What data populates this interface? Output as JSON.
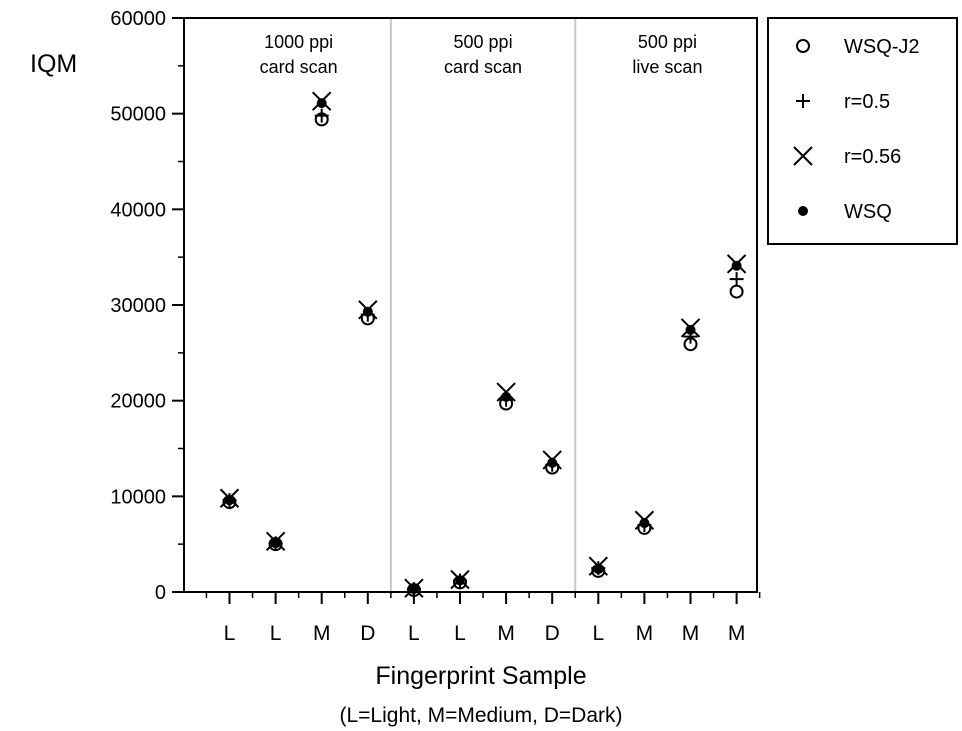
{
  "chart_data": {
    "type": "scatter",
    "ylabel": "IQM",
    "xlabel": "Fingerprint Sample",
    "xlabel_note": "(L=Light,  M=Medium,  D=Dark)",
    "ylim": [
      0,
      60000
    ],
    "y_ticks": [
      0,
      10000,
      20000,
      30000,
      40000,
      50000,
      60000
    ],
    "y_tick_labels": [
      "0",
      "10000",
      "20000",
      "30000",
      "40000",
      "50000",
      "60000"
    ],
    "categories": [
      "L",
      "L",
      "M",
      "D",
      "L",
      "L",
      "M",
      "D",
      "L",
      "M",
      "M",
      "M"
    ],
    "groups": [
      {
        "label_line1": "1000 ppi",
        "label_line2": "card scan",
        "start": 0,
        "end": 3
      },
      {
        "label_line1": "500 ppi",
        "label_line2": "card scan",
        "start": 4,
        "end": 7
      },
      {
        "label_line1": "500 ppi",
        "label_line2": "live scan",
        "start": 8,
        "end": 11
      }
    ],
    "legend_position": "top-right, outside plot",
    "grid": false,
    "series": [
      {
        "name": "WSQ-J2",
        "marker": "circle-open",
        "values": [
          9400,
          5000,
          49400,
          28600,
          200,
          1000,
          19700,
          13000,
          2200,
          6700,
          25900,
          31400
        ]
      },
      {
        "name": "r=0.5",
        "marker": "plus",
        "values": [
          9600,
          5100,
          49800,
          29000,
          300,
          1200,
          20100,
          13300,
          2500,
          7000,
          26700,
          32700
        ]
      },
      {
        "name": "r=0.56",
        "marker": "x",
        "values": [
          9800,
          5300,
          51300,
          29500,
          400,
          1300,
          20900,
          13800,
          2700,
          7500,
          27600,
          34300
        ]
      },
      {
        "name": "WSQ",
        "marker": "dot-filled",
        "values": [
          9600,
          5100,
          51100,
          29300,
          300,
          1200,
          20400,
          13500,
          2400,
          7200,
          27400,
          34100
        ]
      }
    ]
  }
}
